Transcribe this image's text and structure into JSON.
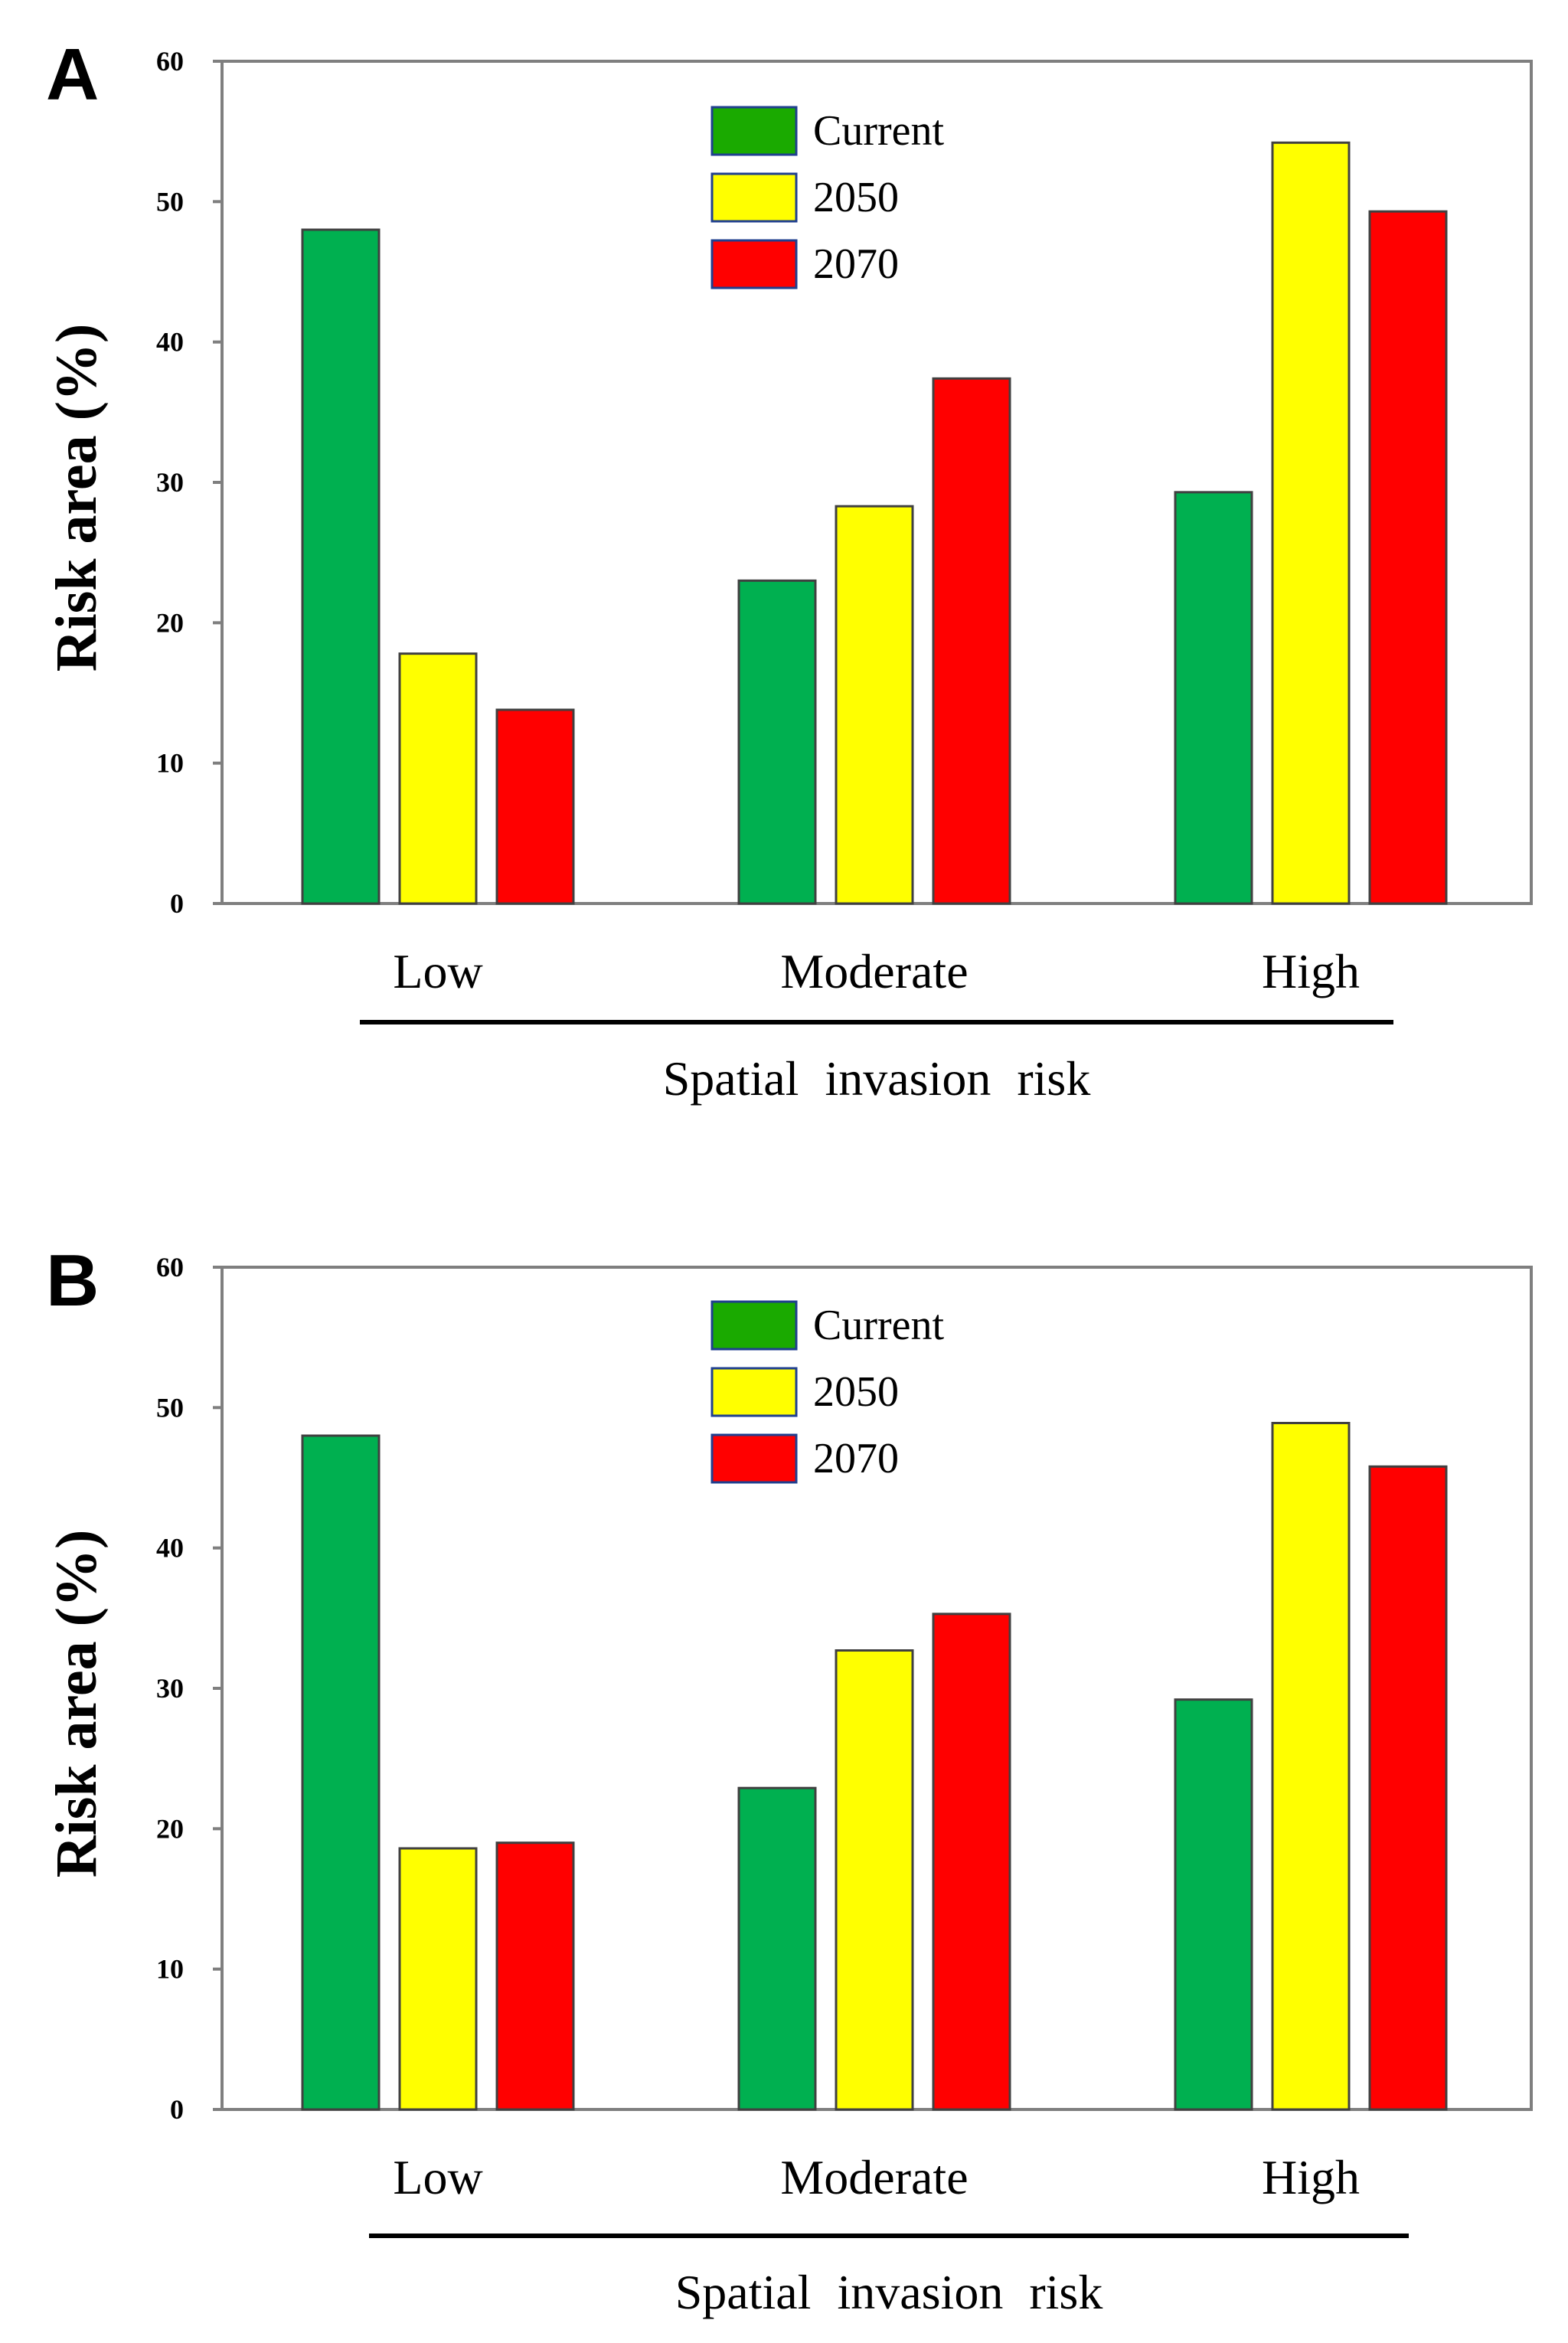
{
  "colors": {
    "Current": "#00b050",
    "2050": "#ffff00",
    "2070": "#ff0000",
    "legend_Current": "#1aaa00",
    "bar_stroke": "#404040",
    "axis": "#7f7f7f"
  },
  "chart_data": [
    {
      "panel": "A",
      "type": "bar",
      "categories": [
        "Low",
        "Moderate",
        "High"
      ],
      "series": [
        {
          "name": "Current",
          "values": [
            48,
            23,
            29.3
          ]
        },
        {
          "name": "2050",
          "values": [
            17.8,
            28.3,
            54.2
          ]
        },
        {
          "name": "2070",
          "values": [
            13.8,
            37.4,
            49.3
          ]
        }
      ],
      "ylabel": "Risk area (%)",
      "xlabel": "Spatial  invasion  risk",
      "ylim": [
        0,
        60
      ],
      "yticks": [
        "0",
        "10",
        "20",
        "30",
        "40",
        "50",
        "60"
      ],
      "legend": [
        "Current",
        "2050",
        "2070"
      ],
      "legend_position": "top-center",
      "grid": false
    },
    {
      "panel": "B",
      "type": "bar",
      "categories": [
        "Low",
        "Moderate",
        "High"
      ],
      "series": [
        {
          "name": "Current",
          "values": [
            48,
            22.9,
            29.2
          ]
        },
        {
          "name": "2050",
          "values": [
            18.6,
            32.7,
            48.9
          ]
        },
        {
          "name": "2070",
          "values": [
            19,
            35.3,
            45.8
          ]
        }
      ],
      "ylabel": "Risk area (%)",
      "xlabel": "Spatial  invasion  risk",
      "ylim": [
        0,
        60
      ],
      "yticks": [
        "0",
        "10",
        "20",
        "30",
        "40",
        "50",
        "60"
      ],
      "legend": [
        "Current",
        "2050",
        "2070"
      ],
      "legend_position": "top-center",
      "grid": false
    }
  ]
}
